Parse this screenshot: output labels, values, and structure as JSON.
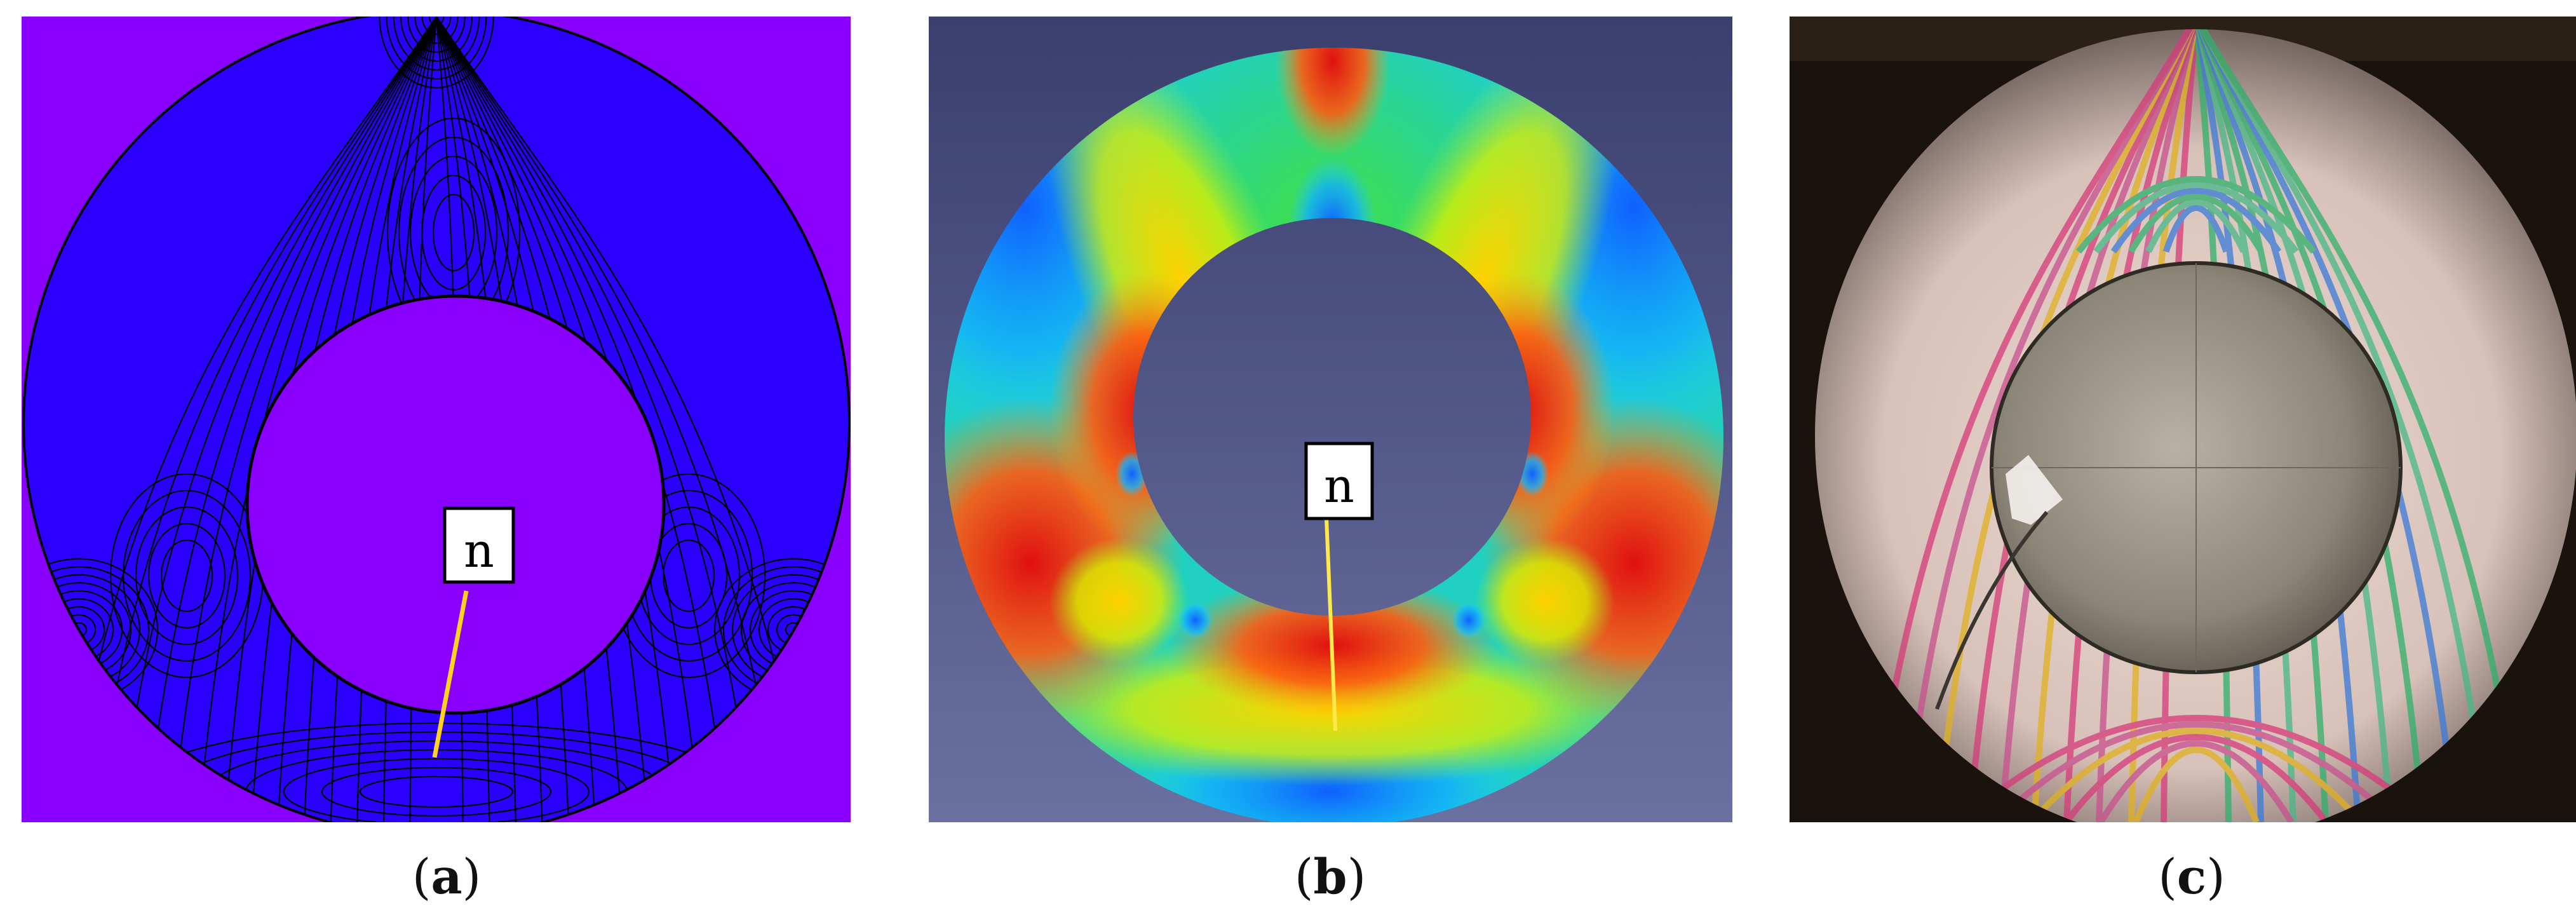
{
  "figure": {
    "panels": [
      {
        "id": "a",
        "caption_open": "(",
        "caption_letter": "a",
        "caption_close": ")",
        "marker_label": "n",
        "colors": {
          "background": "#8a00ff",
          "annulus": "#2b00ff",
          "contour": "#000000",
          "marker_line": "#ffd21f"
        }
      },
      {
        "id": "b",
        "caption_open": "(",
        "caption_letter": "b",
        "caption_close": ")",
        "marker_label": "n",
        "colors": {
          "background_top": "#3a3f6e",
          "background_bottom": "#5e6496",
          "marker_line": "#ffe94a"
        }
      },
      {
        "id": "c",
        "caption_open": "(",
        "caption_letter": "c",
        "caption_close": ")",
        "colors": {
          "background": "#1a120d",
          "fringe_base": "#e7d0c6",
          "inner_disc": "#8a8476"
        }
      }
    ]
  }
}
